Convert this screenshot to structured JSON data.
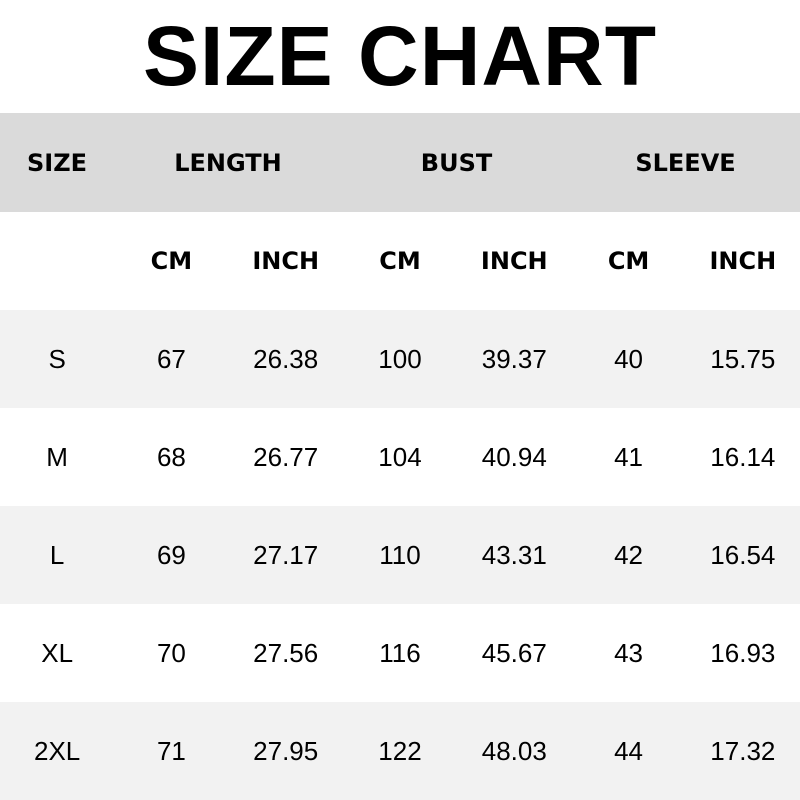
{
  "title": "SIZE CHART",
  "header": [
    "SIZE",
    "LENGTH",
    "BUST",
    "SLEEVE"
  ],
  "units": [
    "",
    "CM",
    "INCH",
    "CM",
    "INCH",
    "CM",
    "INCH"
  ],
  "rows": [
    [
      "S",
      "67",
      "26.38",
      "100",
      "39.37",
      "40",
      "15.75"
    ],
    [
      "M",
      "68",
      "26.77",
      "104",
      "40.94",
      "41",
      "16.14"
    ],
    [
      "L",
      "69",
      "27.17",
      "110",
      "43.31",
      "42",
      "16.54"
    ],
    [
      "XL",
      "70",
      "27.56",
      "116",
      "45.67",
      "43",
      "16.93"
    ],
    [
      "2XL",
      "71",
      "27.95",
      "122",
      "48.03",
      "44",
      "17.32"
    ]
  ],
  "colors": {
    "header_bg": "#dadada",
    "stripe_bg": "#f2f2f2",
    "text": "#000000"
  }
}
